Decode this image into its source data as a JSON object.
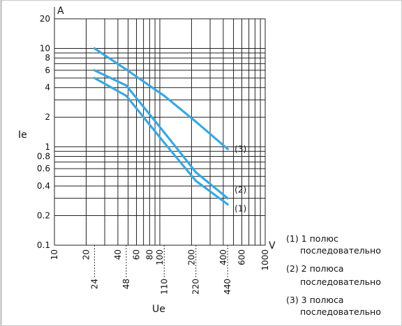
{
  "chart_data": {
    "type": "line",
    "title": "",
    "xlabel": "Ue",
    "ylabel": "Ie",
    "x_unit": "V",
    "y_unit": "A",
    "x_scale": "log",
    "y_scale": "log",
    "xlim": [
      10,
      1000
    ],
    "ylim": [
      0.1,
      20
    ],
    "grid": true,
    "x_tick_labels": [
      "10",
      "20",
      "40",
      "60",
      "80",
      "100",
      "200",
      "400",
      "600",
      "1000"
    ],
    "y_tick_labels": [
      "20",
      "10",
      "8",
      "6",
      "4",
      "2",
      "1",
      "0.8",
      "0.6",
      "0.4",
      "0.2",
      "0.1"
    ],
    "x_ref_values": [
      24,
      48,
      110,
      220,
      440
    ],
    "x_ref_labels": [
      "24",
      "48",
      "110",
      "220",
      "440"
    ],
    "series": [
      {
        "name": "(1)",
        "color": "#3aa8e0",
        "x": [
          24,
          48,
          110,
          220,
          440
        ],
        "y": [
          5,
          3.3,
          1.1,
          0.45,
          0.26
        ]
      },
      {
        "name": "(2)",
        "color": "#3aa8e0",
        "x": [
          24,
          48,
          110,
          220,
          440
        ],
        "y": [
          6,
          4.2,
          1.4,
          0.55,
          0.3
        ]
      },
      {
        "name": "(3)",
        "color": "#3aa8e0",
        "x": [
          24,
          48,
          110,
          220,
          440
        ],
        "y": [
          10,
          6.1,
          3.3,
          1.8,
          0.95
        ]
      }
    ],
    "legend": [
      {
        "key": "(1) 1 полюс",
        "text": "последовательно"
      },
      {
        "key": "(2) 2 полюса",
        "text": "последовательно"
      },
      {
        "key": "(3) 3 полюса",
        "text": "последовательно"
      }
    ]
  }
}
